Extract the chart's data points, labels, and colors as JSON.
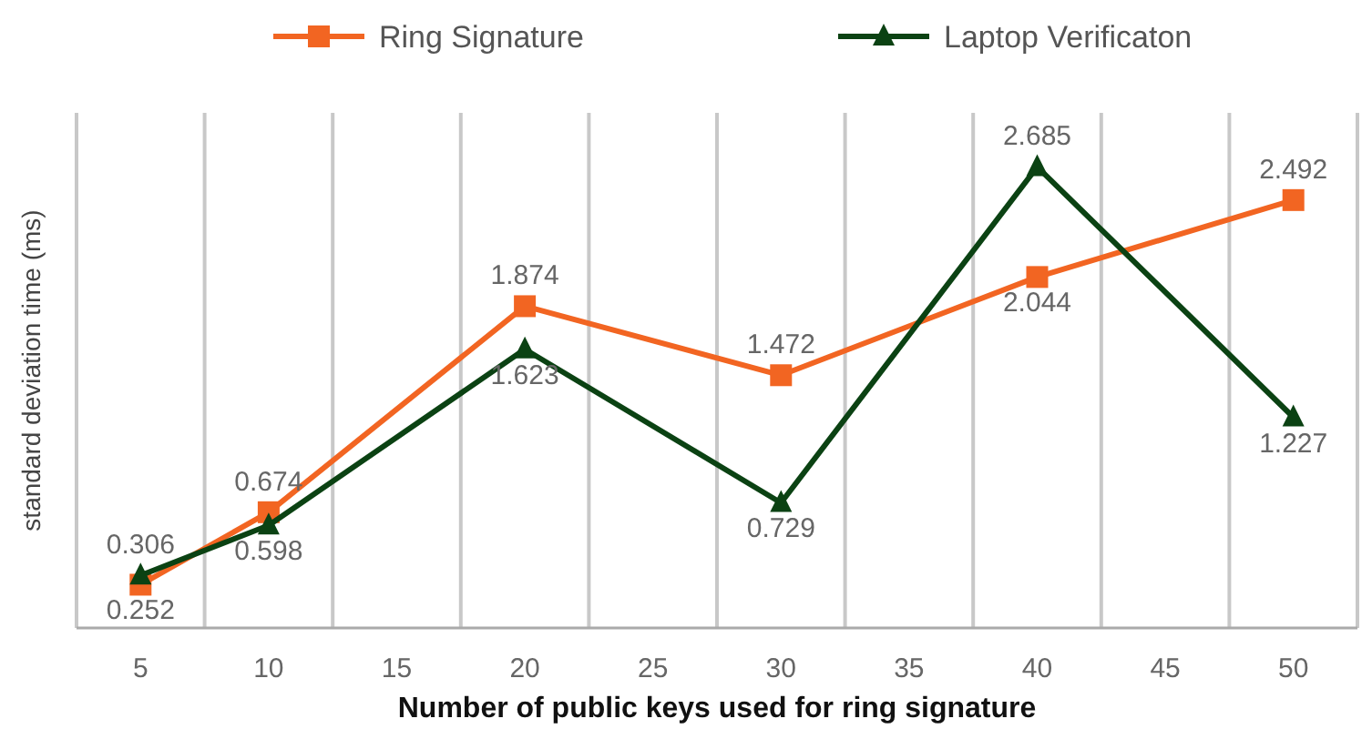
{
  "chart_data": {
    "type": "line",
    "xlabel": "Number of public keys used for ring signature",
    "ylabel": "standard deviation time (ms)",
    "x": [
      5,
      10,
      20,
      30,
      40,
      50
    ],
    "series": [
      {
        "name": "Ring Signature",
        "color": "#f26522",
        "marker": "square",
        "values": [
          0.252,
          0.674,
          1.874,
          1.472,
          2.044,
          2.492
        ]
      },
      {
        "name": "Laptop Verificaton",
        "color": "#0b4213",
        "marker": "triangle",
        "values": [
          0.306,
          0.598,
          1.623,
          0.729,
          2.685,
          1.227
        ]
      }
    ],
    "xlim": [
      2.5,
      52.5
    ],
    "xticks": [
      {
        "value": 2.5,
        "label": null
      },
      5,
      {
        "value": 7.5,
        "label": null
      },
      10,
      {
        "value": 12.5,
        "label": null
      },
      15,
      {
        "value": 17.5,
        "label": null
      },
      20,
      {
        "value": 22.5,
        "label": null
      },
      25,
      {
        "value": 27.5,
        "label": null
      },
      30,
      {
        "value": 32.5,
        "label": null
      },
      35,
      {
        "value": 37.5,
        "label": null
      },
      40,
      {
        "value": 42.5,
        "label": null
      },
      45,
      {
        "value": 47.5,
        "label": null
      },
      50,
      {
        "value": 52.5,
        "label": null
      }
    ],
    "ylim": [
      0,
      3
    ],
    "tick_labels": "x",
    "grid": "x",
    "legend": "top",
    "data_labels": true,
    "line_style": "solid"
  }
}
